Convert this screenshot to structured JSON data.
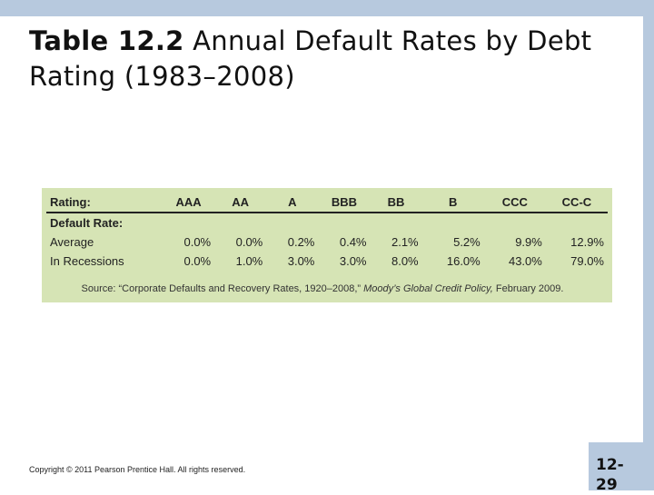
{
  "slide": {
    "title_bold": "Table 12.2",
    "title_rest": "Annual Default Rates by Debt Rating (1983–2008)",
    "copyright": "Copyright © 2011 Pearson Prentice Hall. All rights reserved.",
    "page_number": "12-29"
  },
  "table": {
    "header": [
      "Rating:",
      "AAA",
      "AA",
      "A",
      "BBB",
      "BB",
      "B",
      "CCC",
      "CC-C"
    ],
    "section_label": "Default Rate:",
    "rows": [
      {
        "label": "Average",
        "values": [
          "0.0%",
          "0.0%",
          "0.2%",
          "0.4%",
          "2.1%",
          "5.2%",
          "9.9%",
          "12.9%"
        ]
      },
      {
        "label": "In Recessions",
        "values": [
          "0.0%",
          "1.0%",
          "3.0%",
          "3.0%",
          "8.0%",
          "16.0%",
          "43.0%",
          "79.0%"
        ]
      }
    ],
    "source_prefix": "Source: “Corporate Defaults and Recovery Rates, 1920–2008,”",
    "source_journal": "Moody’s Global Credit Policy,",
    "source_suffix": "February 2009."
  },
  "colors": {
    "accent_band": "#b7c9de",
    "table_background": "#d6e4b5"
  }
}
